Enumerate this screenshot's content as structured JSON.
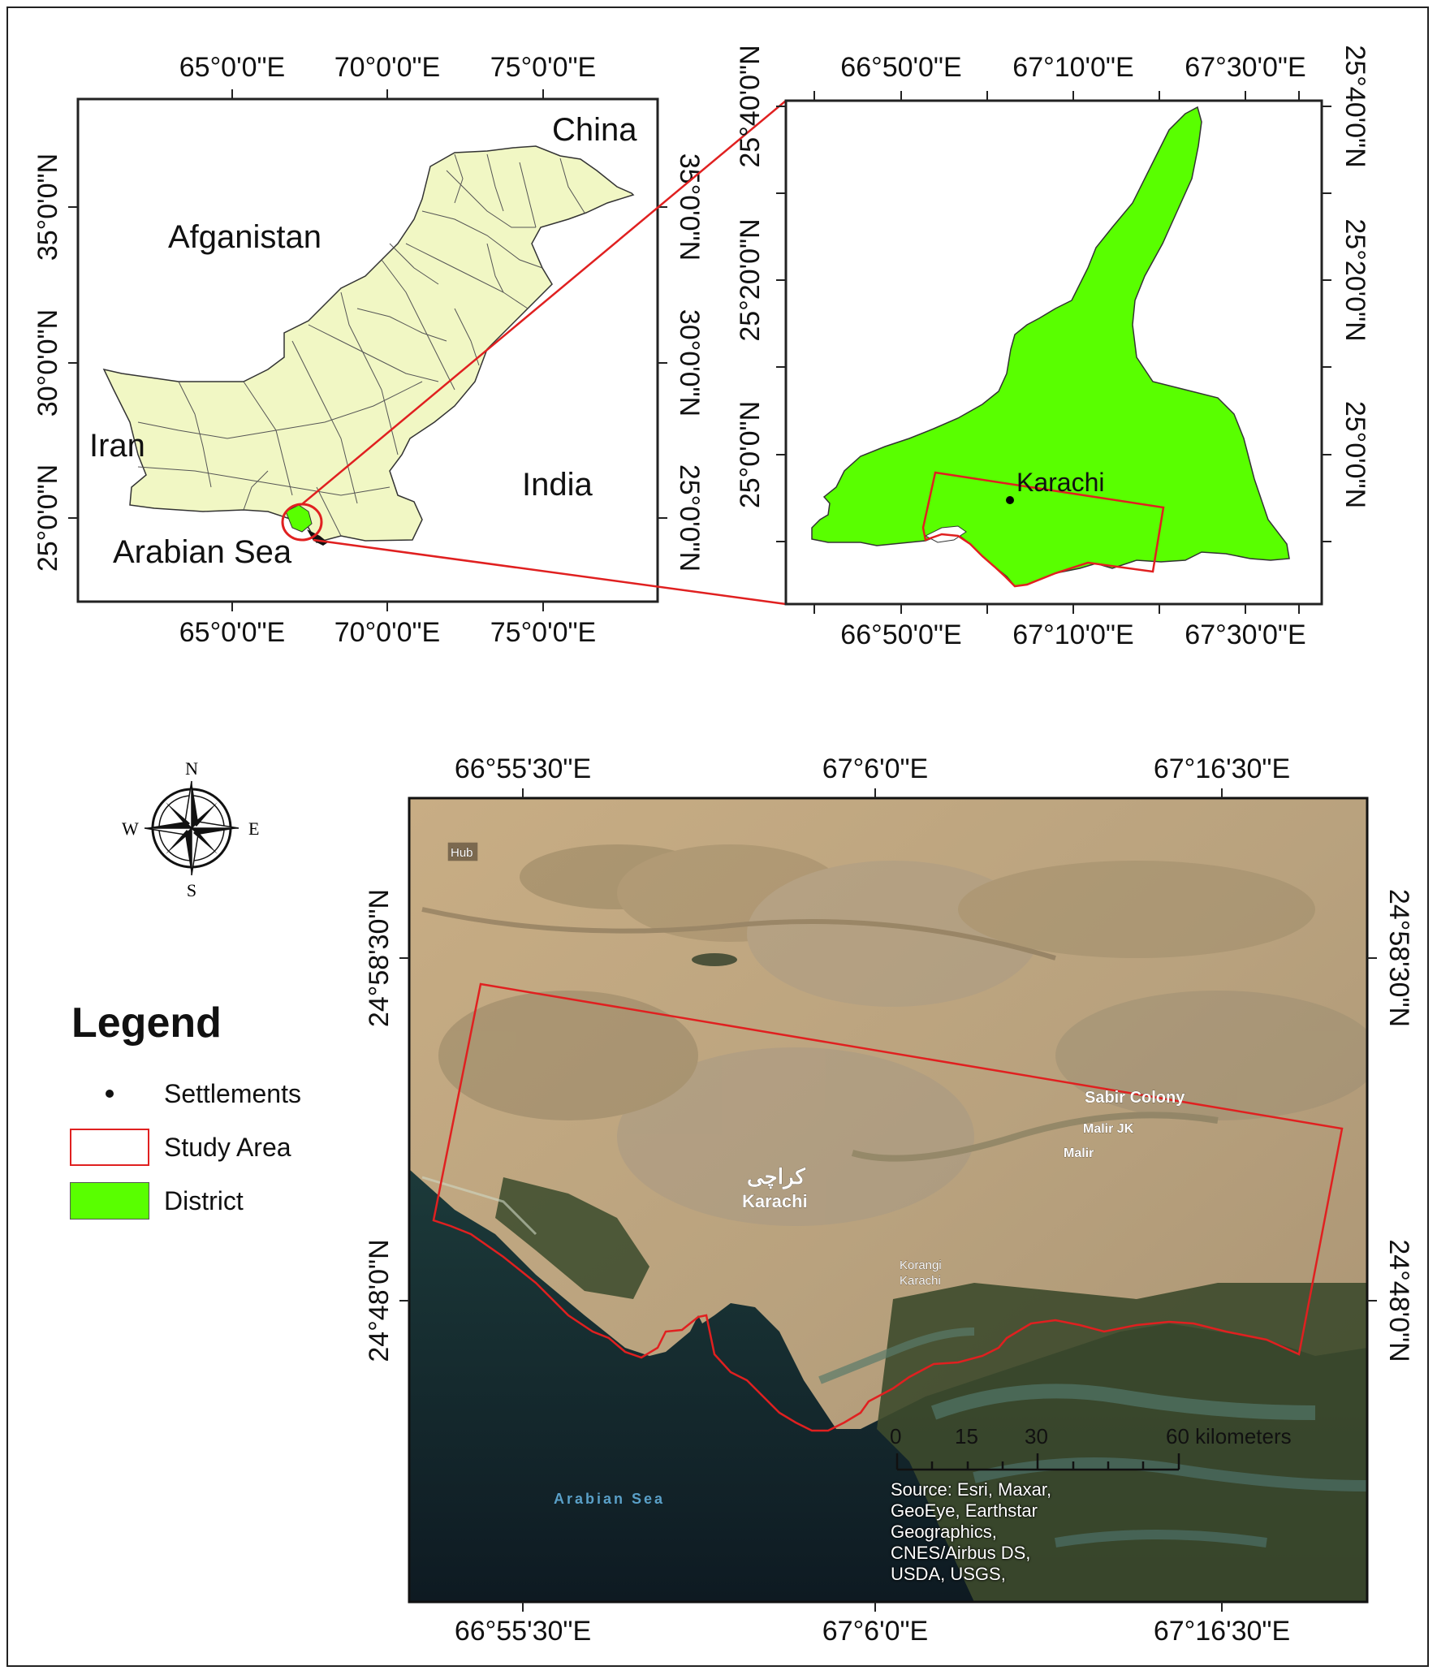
{
  "overview_map": {
    "top_ticks": [
      "65°0'0\"E",
      "70°0'0\"E",
      "75°0'0\"E"
    ],
    "bottom_ticks": [
      "65°0'0\"E",
      "70°0'0\"E",
      "75°0'0\"E"
    ],
    "right_ticks": [
      "35°0'0\"N",
      "30°0'0\"N",
      "25°0'0\"N"
    ],
    "left_ticks": [
      "35°0'0\"N",
      "30°0'0\"N",
      "25°0'0\"N"
    ],
    "labels": {
      "china": "China",
      "afganistan": "Afganistan",
      "iran": "Iran",
      "india": "India",
      "arabian_sea": "Arabian Sea"
    },
    "country_fill": "#f1f7c4"
  },
  "district_map": {
    "top_ticks": [
      "66°50'0\"E",
      "67°10'0\"E",
      "67°30'0\"E"
    ],
    "bottom_ticks": [
      "66°50'0\"E",
      "67°10'0\"E",
      "67°30'0\"E"
    ],
    "left_ticks": [
      "25°40'0\"N",
      "25°20'0\"N",
      "25°0'0\"N"
    ],
    "right_ticks": [
      "25°40'0\"N",
      "25°20'0\"N",
      "25°0'0\"N"
    ],
    "settlement_label": "Karachi",
    "district_fill": "#59ff00"
  },
  "study_map": {
    "top_ticks": [
      "66°55'30\"E",
      "67°6'0\"E",
      "67°16'30\"E"
    ],
    "bottom_ticks": [
      "66°55'30\"E",
      "67°6'0\"E",
      "67°16'30\"E"
    ],
    "left_ticks": [
      "24°58'30\"N",
      "24°48'0\"N"
    ],
    "right_ticks": [
      "24°58'30\"N",
      "24°48'0\"N"
    ],
    "place_labels": {
      "hub": "Hub",
      "sabir_colony": "Sabir Colony",
      "malir_jk": "Malir JK",
      "malir": "Malir",
      "karachi_urdu": "کراچی",
      "karachi": "Karachi",
      "korangi": "Korangi",
      "korangi_karachi": "Karachi",
      "arabian_sea": "Arabian Sea"
    },
    "scale_bar": {
      "labels": [
        "0",
        "15",
        "30",
        "60 kilometers"
      ]
    },
    "credit_lines": [
      "Source: Esri, Maxar,",
      "GeoEye, Earthstar",
      "Geographics,",
      "CNES/Airbus DS,",
      "USDA, USGS,"
    ]
  },
  "compass": {
    "n": "N",
    "s": "S",
    "e": "E",
    "w": "W"
  },
  "legend": {
    "title": "Legend",
    "items": [
      {
        "label": "Settlements",
        "symbol": "dot-icon"
      },
      {
        "label": "Study Area",
        "symbol": "red-outline-rect"
      },
      {
        "label": "District",
        "symbol": "green-fill-rect"
      }
    ]
  },
  "colors": {
    "study_area_outline": "#e02020",
    "district": "#59ff00",
    "country": "#f1f7c4"
  }
}
